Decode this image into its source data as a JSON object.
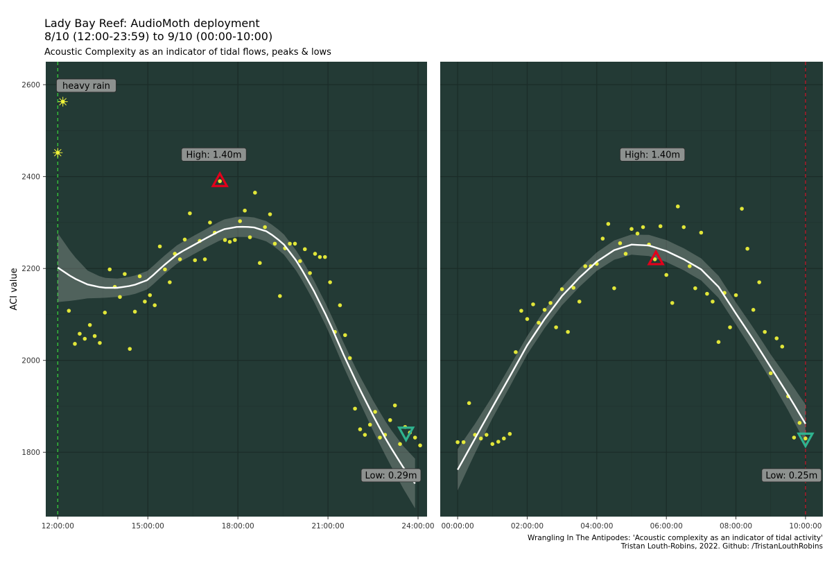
{
  "header": {
    "title_line1": "Lady Bay Reef: AudioMoth deployment",
    "title_line2": "8/10 (12:00-23:59) to 9/10 (00:00-10:00)",
    "subtitle": "Acoustic Complexity as an indicator of tidal flows, peaks & lows"
  },
  "caption": {
    "line1": "Wrangling In The Antipodes: 'Acoustic complexity as an indicator of tidal activity'",
    "line2": "Tristan Louth-Robins, 2022. Github: /TristanLouthRobins"
  },
  "colors": {
    "panel_bg": "#233a35",
    "grid": "#1b2c28",
    "points": "#f2f53a",
    "smooth": "#ffffff",
    "ribbon": "#9aa39f",
    "high_marker": "#e3001b",
    "low_marker": "#2fb38f",
    "rain_vline": "#35c23a",
    "end_vline": "#b5192a",
    "label_bg": "#8d918f"
  },
  "chart_data": [
    {
      "type": "scatter",
      "panel": "left",
      "ylabel": "ACI value",
      "x_unit": "hours",
      "xlim": [
        11.6,
        24.3
      ],
      "ylim": [
        1660,
        2650
      ],
      "x_ticks": [
        {
          "value": 12,
          "label": "12:00:00"
        },
        {
          "value": 15,
          "label": "15:00:00"
        },
        {
          "value": 18,
          "label": "18:00:00"
        },
        {
          "value": 21,
          "label": "21:00:00"
        },
        {
          "value": 24,
          "label": "24:00:00"
        }
      ],
      "y_ticks": [
        {
          "value": 1800,
          "label": "1800"
        },
        {
          "value": 2000,
          "label": "2000"
        },
        {
          "value": 2200,
          "label": "2200"
        },
        {
          "value": 2400,
          "label": "2400"
        },
        {
          "value": 2600,
          "label": "2600"
        }
      ],
      "points": [
        [
          12.17,
          2563
        ],
        [
          12.0,
          2452
        ],
        [
          12.37,
          2108
        ],
        [
          12.57,
          2036
        ],
        [
          12.73,
          2058
        ],
        [
          12.9,
          2047
        ],
        [
          13.07,
          2077
        ],
        [
          13.23,
          2053
        ],
        [
          13.4,
          2038
        ],
        [
          13.57,
          2104
        ],
        [
          13.73,
          2198
        ],
        [
          13.9,
          2160
        ],
        [
          14.07,
          2138
        ],
        [
          14.23,
          2188
        ],
        [
          14.4,
          2025
        ],
        [
          14.57,
          2106
        ],
        [
          14.73,
          2183
        ],
        [
          14.9,
          2128
        ],
        [
          15.07,
          2142
        ],
        [
          15.23,
          2120
        ],
        [
          15.4,
          2248
        ],
        [
          15.57,
          2198
        ],
        [
          15.73,
          2170
        ],
        [
          15.9,
          2232
        ],
        [
          16.07,
          2220
        ],
        [
          16.23,
          2263
        ],
        [
          16.4,
          2320
        ],
        [
          16.57,
          2218
        ],
        [
          16.73,
          2260
        ],
        [
          16.9,
          2220
        ],
        [
          17.07,
          2300
        ],
        [
          17.23,
          2278
        ],
        [
          17.4,
          2390
        ],
        [
          17.57,
          2262
        ],
        [
          17.73,
          2258
        ],
        [
          17.9,
          2262
        ],
        [
          18.07,
          2303
        ],
        [
          18.23,
          2326
        ],
        [
          18.4,
          2268
        ],
        [
          18.57,
          2365
        ],
        [
          18.73,
          2212
        ],
        [
          18.9,
          2290
        ],
        [
          19.07,
          2318
        ],
        [
          19.23,
          2254
        ],
        [
          19.4,
          2140
        ],
        [
          19.57,
          2244
        ],
        [
          19.73,
          2254
        ],
        [
          19.9,
          2254
        ],
        [
          20.07,
          2216
        ],
        [
          20.23,
          2242
        ],
        [
          20.4,
          2190
        ],
        [
          20.57,
          2232
        ],
        [
          20.73,
          2225
        ],
        [
          20.9,
          2225
        ],
        [
          21.07,
          2170
        ],
        [
          21.23,
          2062
        ],
        [
          21.4,
          2120
        ],
        [
          21.57,
          2055
        ],
        [
          21.73,
          2005
        ],
        [
          21.9,
          1895
        ],
        [
          22.07,
          1850
        ],
        [
          22.23,
          1838
        ],
        [
          22.4,
          1860
        ],
        [
          22.57,
          1888
        ],
        [
          22.73,
          1832
        ],
        [
          22.9,
          1838
        ],
        [
          23.07,
          1870
        ],
        [
          23.23,
          1902
        ],
        [
          23.4,
          1818
        ],
        [
          23.57,
          1855
        ],
        [
          23.73,
          1843
        ],
        [
          23.9,
          1832
        ],
        [
          24.07,
          1815
        ]
      ],
      "smooth": [
        [
          12.0,
          2202
        ],
        [
          12.5,
          2180
        ],
        [
          13.0,
          2165
        ],
        [
          13.5,
          2158
        ],
        [
          14.0,
          2158
        ],
        [
          14.5,
          2163
        ],
        [
          15.0,
          2175
        ],
        [
          15.5,
          2205
        ],
        [
          16.0,
          2232
        ],
        [
          16.5,
          2250
        ],
        [
          17.0,
          2268
        ],
        [
          17.5,
          2285
        ],
        [
          18.0,
          2291
        ],
        [
          18.5,
          2290
        ],
        [
          19.0,
          2280
        ],
        [
          19.5,
          2255
        ],
        [
          20.0,
          2212
        ],
        [
          20.5,
          2155
        ],
        [
          21.0,
          2090
        ],
        [
          21.5,
          2015
        ],
        [
          22.0,
          1945
        ],
        [
          22.5,
          1880
        ],
        [
          23.0,
          1820
        ],
        [
          23.5,
          1768
        ],
        [
          23.9,
          1732
        ]
      ],
      "ribbon_halfwidth": [
        [
          12.0,
          75
        ],
        [
          12.5,
          50
        ],
        [
          13.0,
          30
        ],
        [
          13.5,
          22
        ],
        [
          14.0,
          20
        ],
        [
          15.0,
          20
        ],
        [
          16.0,
          20
        ],
        [
          17.0,
          20
        ],
        [
          18.0,
          22
        ],
        [
          19.0,
          22
        ],
        [
          20.0,
          22
        ],
        [
          21.0,
          24
        ],
        [
          22.0,
          28
        ],
        [
          23.0,
          38
        ],
        [
          23.5,
          46
        ],
        [
          23.9,
          54
        ]
      ],
      "high_marker": {
        "x": 17.4,
        "y": 2390
      },
      "low_marker": {
        "x": 23.6,
        "y": 1843
      },
      "annotations": [
        {
          "text": "heavy rain",
          "x": 12.95,
          "y": 2598
        },
        {
          "text": "High: 1.40m",
          "x": 17.2,
          "y": 2448
        },
        {
          "text": "Low: 0.29m",
          "x": 23.1,
          "y": 1750
        }
      ],
      "rain_points": [
        [
          12.17,
          2563
        ],
        [
          12.0,
          2452
        ]
      ],
      "vline": {
        "x": 12.0,
        "style": "dashed",
        "color": "rain"
      }
    },
    {
      "type": "scatter",
      "panel": "right",
      "x_unit": "hours",
      "xlim": [
        -0.5,
        10.5
      ],
      "ylim": [
        1660,
        2650
      ],
      "x_ticks": [
        {
          "value": 0,
          "label": "00:00:00"
        },
        {
          "value": 2,
          "label": "02:00:00"
        },
        {
          "value": 4,
          "label": "04:00:00"
        },
        {
          "value": 6,
          "label": "06:00:00"
        },
        {
          "value": 8,
          "label": "08:00:00"
        },
        {
          "value": 10,
          "label": "10:00:00"
        }
      ],
      "points": [
        [
          0.0,
          1822
        ],
        [
          0.17,
          1822
        ],
        [
          0.33,
          1907
        ],
        [
          0.5,
          1838
        ],
        [
          0.67,
          1830
        ],
        [
          0.83,
          1838
        ],
        [
          1.0,
          1818
        ],
        [
          1.17,
          1823
        ],
        [
          1.33,
          1830
        ],
        [
          1.5,
          1840
        ],
        [
          1.67,
          2018
        ],
        [
          1.83,
          2108
        ],
        [
          2.0,
          2090
        ],
        [
          2.17,
          2122
        ],
        [
          2.33,
          2082
        ],
        [
          2.5,
          2110
        ],
        [
          2.67,
          2125
        ],
        [
          2.83,
          2072
        ],
        [
          3.0,
          2155
        ],
        [
          3.17,
          2062
        ],
        [
          3.33,
          2158
        ],
        [
          3.5,
          2128
        ],
        [
          3.67,
          2205
        ],
        [
          3.83,
          2205
        ],
        [
          4.0,
          2210
        ],
        [
          4.17,
          2265
        ],
        [
          4.33,
          2297
        ],
        [
          4.5,
          2157
        ],
        [
          4.67,
          2255
        ],
        [
          4.83,
          2232
        ],
        [
          5.0,
          2286
        ],
        [
          5.17,
          2276
        ],
        [
          5.33,
          2290
        ],
        [
          5.5,
          2252
        ],
        [
          5.67,
          2220
        ],
        [
          5.83,
          2292
        ],
        [
          6.0,
          2186
        ],
        [
          6.17,
          2125
        ],
        [
          6.33,
          2335
        ],
        [
          6.5,
          2290
        ],
        [
          6.67,
          2205
        ],
        [
          6.83,
          2157
        ],
        [
          7.0,
          2278
        ],
        [
          7.17,
          2145
        ],
        [
          7.33,
          2128
        ],
        [
          7.5,
          2040
        ],
        [
          7.67,
          2147
        ],
        [
          7.83,
          2072
        ],
        [
          8.0,
          2142
        ],
        [
          8.17,
          2330
        ],
        [
          8.33,
          2243
        ],
        [
          8.5,
          2110
        ],
        [
          8.67,
          2170
        ],
        [
          8.83,
          2062
        ],
        [
          9.0,
          1972
        ],
        [
          9.17,
          2048
        ],
        [
          9.33,
          2030
        ],
        [
          9.5,
          1922
        ],
        [
          9.67,
          1832
        ],
        [
          9.83,
          1864
        ],
        [
          10.0,
          1830
        ]
      ],
      "smooth": [
        [
          0.0,
          1762
        ],
        [
          0.5,
          1830
        ],
        [
          1.0,
          1898
        ],
        [
          1.5,
          1965
        ],
        [
          2.0,
          2033
        ],
        [
          2.5,
          2090
        ],
        [
          3.0,
          2140
        ],
        [
          3.5,
          2180
        ],
        [
          4.0,
          2215
        ],
        [
          4.5,
          2240
        ],
        [
          5.0,
          2252
        ],
        [
          5.5,
          2250
        ],
        [
          6.0,
          2238
        ],
        [
          6.5,
          2220
        ],
        [
          7.0,
          2198
        ],
        [
          7.5,
          2160
        ],
        [
          8.0,
          2102
        ],
        [
          8.5,
          2045
        ],
        [
          9.0,
          1985
        ],
        [
          9.5,
          1925
        ],
        [
          10.0,
          1862
        ]
      ],
      "ribbon_halfwidth": [
        [
          0.0,
          45
        ],
        [
          0.5,
          32
        ],
        [
          1.0,
          24
        ],
        [
          2.0,
          20
        ],
        [
          3.0,
          20
        ],
        [
          4.0,
          20
        ],
        [
          5.0,
          22
        ],
        [
          6.0,
          24
        ],
        [
          7.0,
          24
        ],
        [
          8.0,
          24
        ],
        [
          9.0,
          28
        ],
        [
          9.5,
          34
        ],
        [
          10.0,
          42
        ]
      ],
      "high_marker": {
        "x": 5.7,
        "y": 2220
      },
      "low_marker": {
        "x": 10.0,
        "y": 1830
      },
      "annotations": [
        {
          "text": "High: 1.40m",
          "x": 5.6,
          "y": 2448
        },
        {
          "text": "Low: 0.25m",
          "x": 9.6,
          "y": 1750
        }
      ],
      "vline": {
        "x": 10.0,
        "style": "dashed",
        "color": "end"
      }
    }
  ]
}
